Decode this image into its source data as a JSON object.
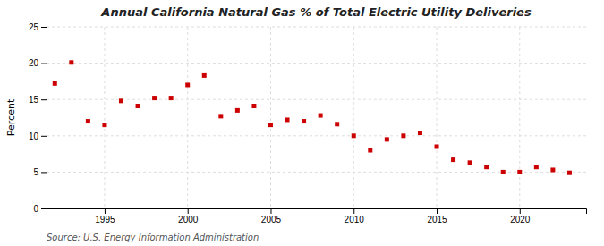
{
  "chart_data": {
    "type": "scatter",
    "title": "Annual California Natural Gas % of Total Electric Utility Deliveries",
    "ylabel": "Percent",
    "annotations": [
      "Source: U.S. Energy Information Administration"
    ],
    "x": [
      1992,
      1993,
      1994,
      1995,
      1996,
      1997,
      1998,
      1999,
      2000,
      2001,
      2002,
      2003,
      2004,
      2005,
      2006,
      2007,
      2008,
      2009,
      2010,
      2011,
      2012,
      2013,
      2014,
      2015,
      2016,
      2017,
      2018,
      2019,
      2020,
      2021,
      2022,
      2023
    ],
    "values": [
      17.2,
      20.1,
      12.0,
      11.5,
      14.8,
      14.1,
      15.2,
      15.2,
      17.0,
      18.3,
      12.7,
      13.5,
      14.1,
      11.5,
      12.2,
      12.0,
      12.8,
      11.6,
      10.0,
      8.0,
      9.5,
      10.0,
      10.4,
      8.5,
      6.7,
      6.3,
      5.7,
      5.0,
      5.0,
      5.7,
      5.3,
      4.9
    ],
    "color": "#cc0000",
    "marker": "square",
    "xlim": [
      1991.5,
      2024
    ],
    "xticks": [
      1995,
      2000,
      2005,
      2010,
      2015,
      2020
    ],
    "ylim": [
      0,
      25
    ],
    "yticks": [
      0,
      5,
      10,
      15,
      20,
      25
    ],
    "grid": true
  }
}
